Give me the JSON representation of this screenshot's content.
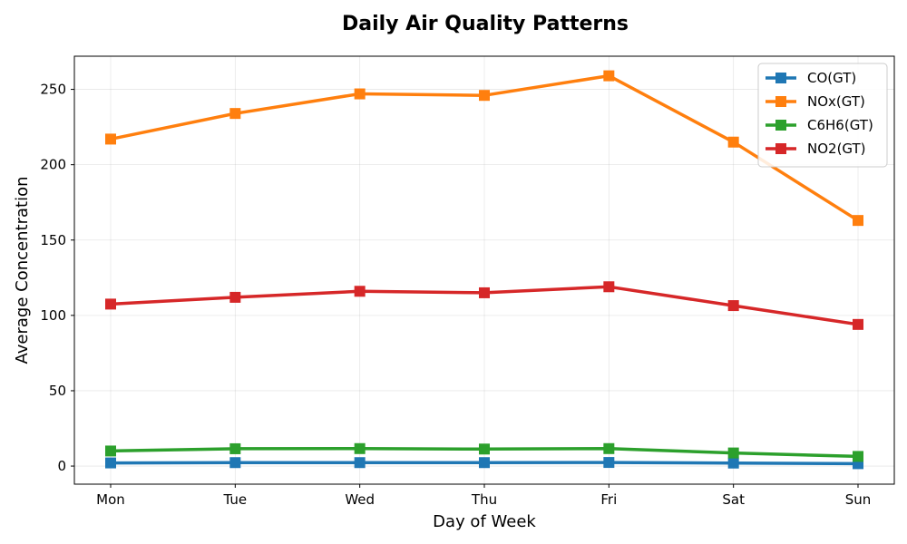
{
  "chart_data": {
    "type": "line",
    "title": "Daily Air Quality Patterns",
    "xlabel": "Day of Week",
    "ylabel": "Average Concentration",
    "categories": [
      "Mon",
      "Tue",
      "Wed",
      "Thu",
      "Fri",
      "Sat",
      "Sun"
    ],
    "ylim": [
      -12,
      272
    ],
    "yticks": [
      0,
      50,
      100,
      150,
      200,
      250
    ],
    "grid": true,
    "legend_position": "top-right",
    "series": [
      {
        "name": "CO(GT)",
        "color": "#1f77b4",
        "values": [
          2.1,
          2.3,
          2.3,
          2.3,
          2.4,
          2.0,
          1.6
        ]
      },
      {
        "name": "NOx(GT)",
        "color": "#ff7f0e",
        "values": [
          217,
          234,
          247,
          246,
          259,
          215,
          163
        ]
      },
      {
        "name": "C6H6(GT)",
        "color": "#2ca02c",
        "values": [
          10.0,
          11.5,
          11.6,
          11.3,
          11.6,
          8.7,
          6.4
        ]
      },
      {
        "name": "NO2(GT)",
        "color": "#d62728",
        "values": [
          107.5,
          112,
          116,
          115,
          119,
          106.5,
          94
        ]
      }
    ]
  }
}
